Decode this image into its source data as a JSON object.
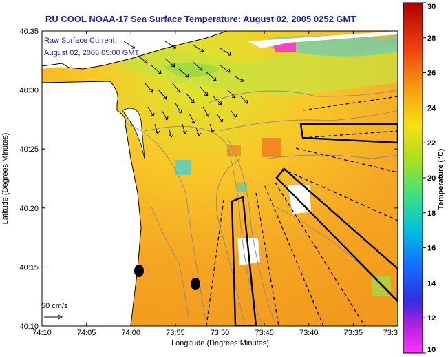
{
  "title": "RU COOL  NOAA-17  Sea Surface Temperature:  August 02, 2005 0252 GMT",
  "annotation": {
    "line1": "Raw Surface Current:",
    "line2": "August 02, 2005 05:00 GMT"
  },
  "scale_label": "50 cm/s",
  "axes": {
    "xlabel": "Longitude (Degrees:Minutes)",
    "ylabel": "Latitude (Degrees:Minutes)",
    "x_ticks": [
      "74:10",
      "74:05",
      "74:00",
      "73:55",
      "73:50",
      "73:45",
      "73:40",
      "73:35",
      "73:3"
    ],
    "y_ticks": [
      "40:35",
      "40:30",
      "40:25",
      "40:20",
      "40:15",
      "40:10"
    ]
  },
  "colorbar": {
    "label": "Temperature (°C)",
    "ticks": [
      "30",
      "28",
      "26",
      "24",
      "22",
      "20",
      "18",
      "16",
      "14",
      "12",
      "10"
    ],
    "min": 10,
    "max": 30
  },
  "colors": {
    "title": "#1a1acd",
    "land": "#ffffff",
    "sst_base": "#f5a623"
  }
}
